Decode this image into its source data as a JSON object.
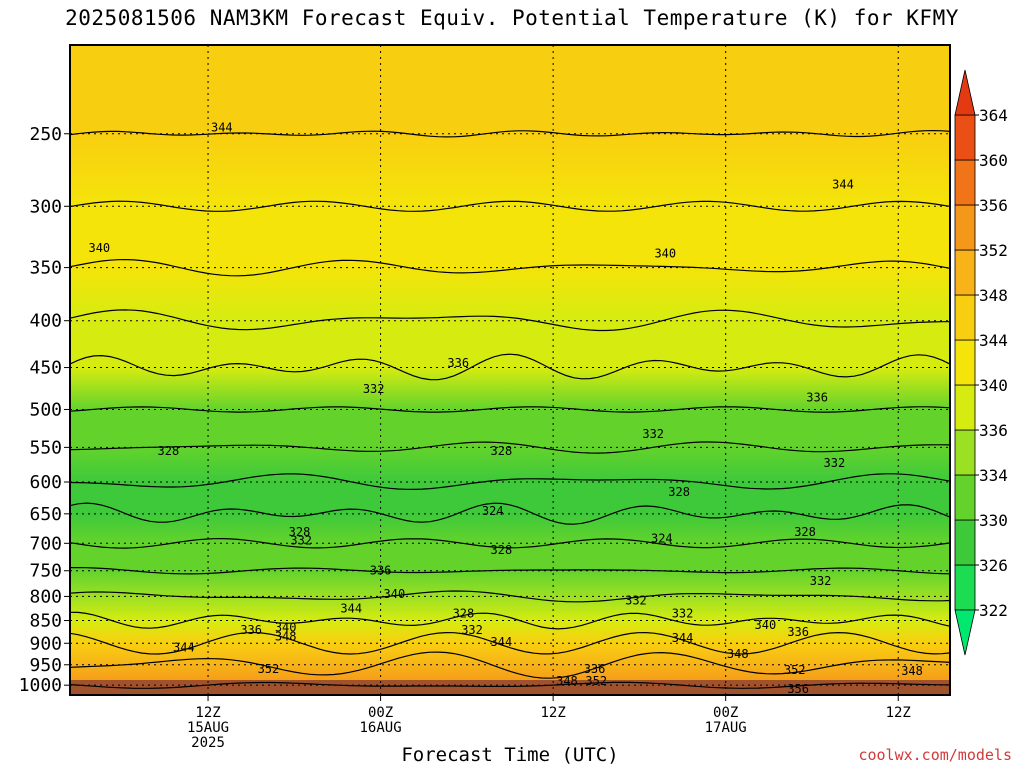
{
  "title": "2025081506 NAM3KM Forecast Equiv. Potential Temperature (K) for KFMY",
  "credit": "coolwx.com/models",
  "chart_data": {
    "type": "heatmap",
    "variable": "Equivalent Potential Temperature (K)",
    "xlabel": "Forecast Time (UTC)",
    "x_range_hours": [
      -8,
      43
    ],
    "x_ticks": [
      {
        "hour": 0,
        "lines": [
          "12Z",
          "15AUG",
          "2025"
        ]
      },
      {
        "hour": 10,
        "lines": [
          "00Z",
          "16AUG"
        ]
      },
      {
        "hour": 20,
        "lines": [
          "12Z"
        ]
      },
      {
        "hour": 30,
        "lines": [
          "00Z",
          "17AUG"
        ]
      },
      {
        "hour": 40,
        "lines": [
          "12Z"
        ]
      }
    ],
    "y_range_hpa": [
      1025,
      200
    ],
    "y_scale": "log",
    "y_ticks": [
      250,
      300,
      350,
      400,
      450,
      500,
      550,
      600,
      650,
      700,
      750,
      800,
      850,
      900,
      950,
      1000
    ],
    "colorbar": {
      "levels": [
        322,
        326,
        330,
        334,
        336,
        340,
        344,
        348,
        352,
        356,
        360,
        364
      ],
      "colors": [
        "#00e870",
        "#1ddc52",
        "#3ec93b",
        "#63d32c",
        "#9ce024",
        "#d6ec10",
        "#f4e40a",
        "#f8cf10",
        "#f7b318",
        "#f59718",
        "#f17419",
        "#ea4f16",
        "#e33a12"
      ]
    },
    "profile_by_pressure": [
      {
        "p": 250,
        "theta_e": 345
      },
      {
        "p": 300,
        "theta_e": 342
      },
      {
        "p": 350,
        "theta_e": 340
      },
      {
        "p": 400,
        "theta_e": 338
      },
      {
        "p": 450,
        "theta_e": 336
      },
      {
        "p": 500,
        "theta_e": 332
      },
      {
        "p": 550,
        "theta_e": 330
      },
      {
        "p": 600,
        "theta_e": 326
      },
      {
        "p": 650,
        "theta_e": 326
      },
      {
        "p": 700,
        "theta_e": 330
      },
      {
        "p": 750,
        "theta_e": 332
      },
      {
        "p": 800,
        "theta_e": 334
      },
      {
        "p": 850,
        "theta_e": 338
      },
      {
        "p": 900,
        "theta_e": 344
      },
      {
        "p": 950,
        "theta_e": 350
      },
      {
        "p": 1000,
        "theta_e": 354
      }
    ],
    "contour_labels": [
      {
        "value": "344",
        "hour": 0.8,
        "p": 246
      },
      {
        "value": "344",
        "hour": 36.8,
        "p": 284
      },
      {
        "value": "340",
        "hour": -6.3,
        "p": 333
      },
      {
        "value": "340",
        "hour": 26.5,
        "p": 338
      },
      {
        "value": "336",
        "hour": 14.5,
        "p": 445
      },
      {
        "value": "336",
        "hour": 35.3,
        "p": 485
      },
      {
        "value": "332",
        "hour": 9.6,
        "p": 475
      },
      {
        "value": "332",
        "hour": 25.8,
        "p": 532
      },
      {
        "value": "332",
        "hour": 36.3,
        "p": 572
      },
      {
        "value": "332",
        "hour": 35.5,
        "p": 770
      },
      {
        "value": "332",
        "hour": 5.4,
        "p": 695
      },
      {
        "value": "332",
        "hour": 24.8,
        "p": 808
      },
      {
        "value": "332",
        "hour": 27.5,
        "p": 835
      },
      {
        "value": "332",
        "hour": 15.3,
        "p": 870
      },
      {
        "value": "328",
        "hour": -2.3,
        "p": 555
      },
      {
        "value": "328",
        "hour": 17.0,
        "p": 555
      },
      {
        "value": "328",
        "hour": 27.3,
        "p": 615
      },
      {
        "value": "328",
        "hour": 34.6,
        "p": 680
      },
      {
        "value": "328",
        "hour": 17.0,
        "p": 712
      },
      {
        "value": "328",
        "hour": 5.3,
        "p": 680
      },
      {
        "value": "328",
        "hour": 14.8,
        "p": 835
      },
      {
        "value": "324",
        "hour": 16.5,
        "p": 645
      },
      {
        "value": "324",
        "hour": 26.3,
        "p": 692
      },
      {
        "value": "336",
        "hour": 10.0,
        "p": 750
      },
      {
        "value": "336",
        "hour": 2.5,
        "p": 870
      },
      {
        "value": "336",
        "hour": 34.2,
        "p": 875
      },
      {
        "value": "336",
        "hour": 22.4,
        "p": 960
      },
      {
        "value": "340",
        "hour": 10.8,
        "p": 795
      },
      {
        "value": "340",
        "hour": 4.5,
        "p": 865
      },
      {
        "value": "340",
        "hour": 32.3,
        "p": 860
      },
      {
        "value": "344",
        "hour": 8.3,
        "p": 825
      },
      {
        "value": "344",
        "hour": -1.4,
        "p": 910
      },
      {
        "value": "344",
        "hour": 17.0,
        "p": 897
      },
      {
        "value": "344",
        "hour": 27.5,
        "p": 888
      },
      {
        "value": "348",
        "hour": 4.5,
        "p": 885
      },
      {
        "value": "348",
        "hour": 30.7,
        "p": 925
      },
      {
        "value": "348",
        "hour": 20.8,
        "p": 990
      },
      {
        "value": "348",
        "hour": 40.8,
        "p": 965
      },
      {
        "value": "352",
        "hour": 3.5,
        "p": 960
      },
      {
        "value": "352",
        "hour": 22.5,
        "p": 990
      },
      {
        "value": "352",
        "hour": 34.0,
        "p": 962
      },
      {
        "value": "356",
        "hour": 34.2,
        "p": 1010
      }
    ]
  }
}
